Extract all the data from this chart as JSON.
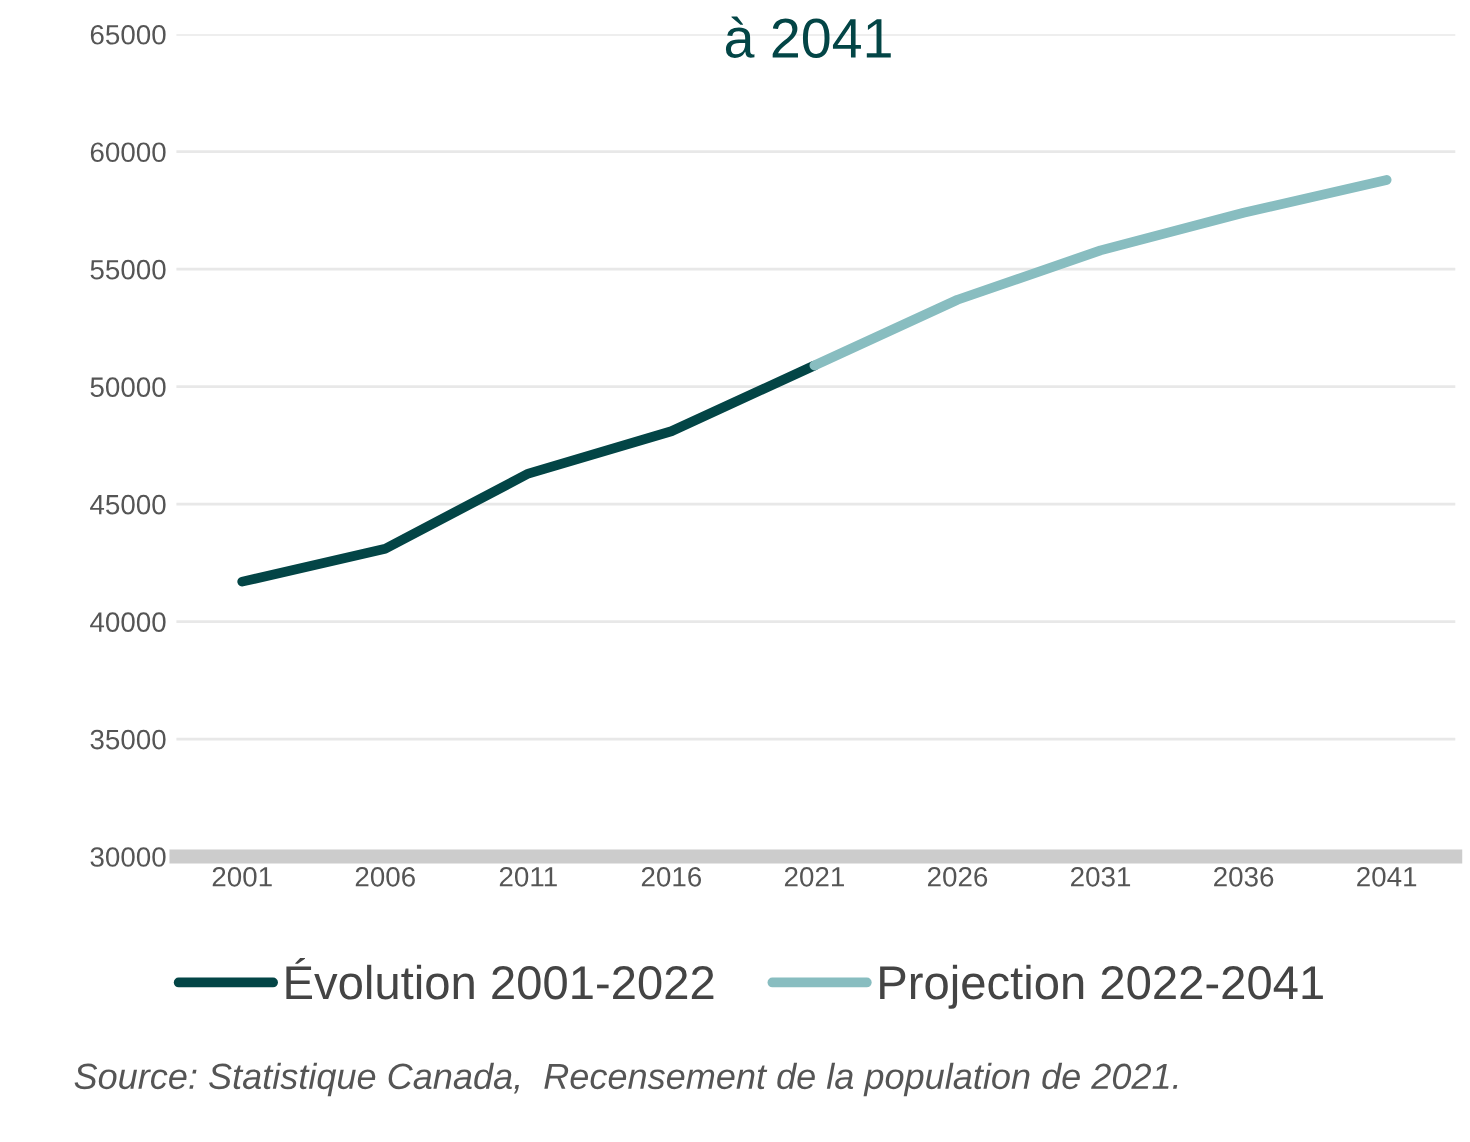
{
  "chart_data": {
    "type": "line",
    "title": "à 2041",
    "series": [
      {
        "name": "Évolution 2001-2022",
        "color": "#034546",
        "x": [
          2001,
          2006,
          2011,
          2016,
          2021
        ],
        "values": [
          41700,
          43100,
          46300,
          48100,
          50900
        ]
      },
      {
        "name": "Projection 2022-2041",
        "color": "#88bdc0",
        "x": [
          2021,
          2026,
          2031,
          2036,
          2041
        ],
        "values": [
          50900,
          53700,
          55800,
          57400,
          58800
        ]
      }
    ],
    "xlim": [
      1998.7,
      2043.4
    ],
    "xticks": [
      2001,
      2006,
      2011,
      2016,
      2021,
      2026,
      2031,
      2036,
      2041
    ],
    "ylim": [
      30000,
      65000
    ],
    "yticks": [
      30000,
      35000,
      40000,
      45000,
      50000,
      55000,
      60000,
      65000
    ],
    "grid": "y",
    "legend": "bottom",
    "marker": "none",
    "line_style": "solid",
    "annotations": [
      "Source: Statistique Canada,  Recensement de la population de 2021."
    ]
  }
}
